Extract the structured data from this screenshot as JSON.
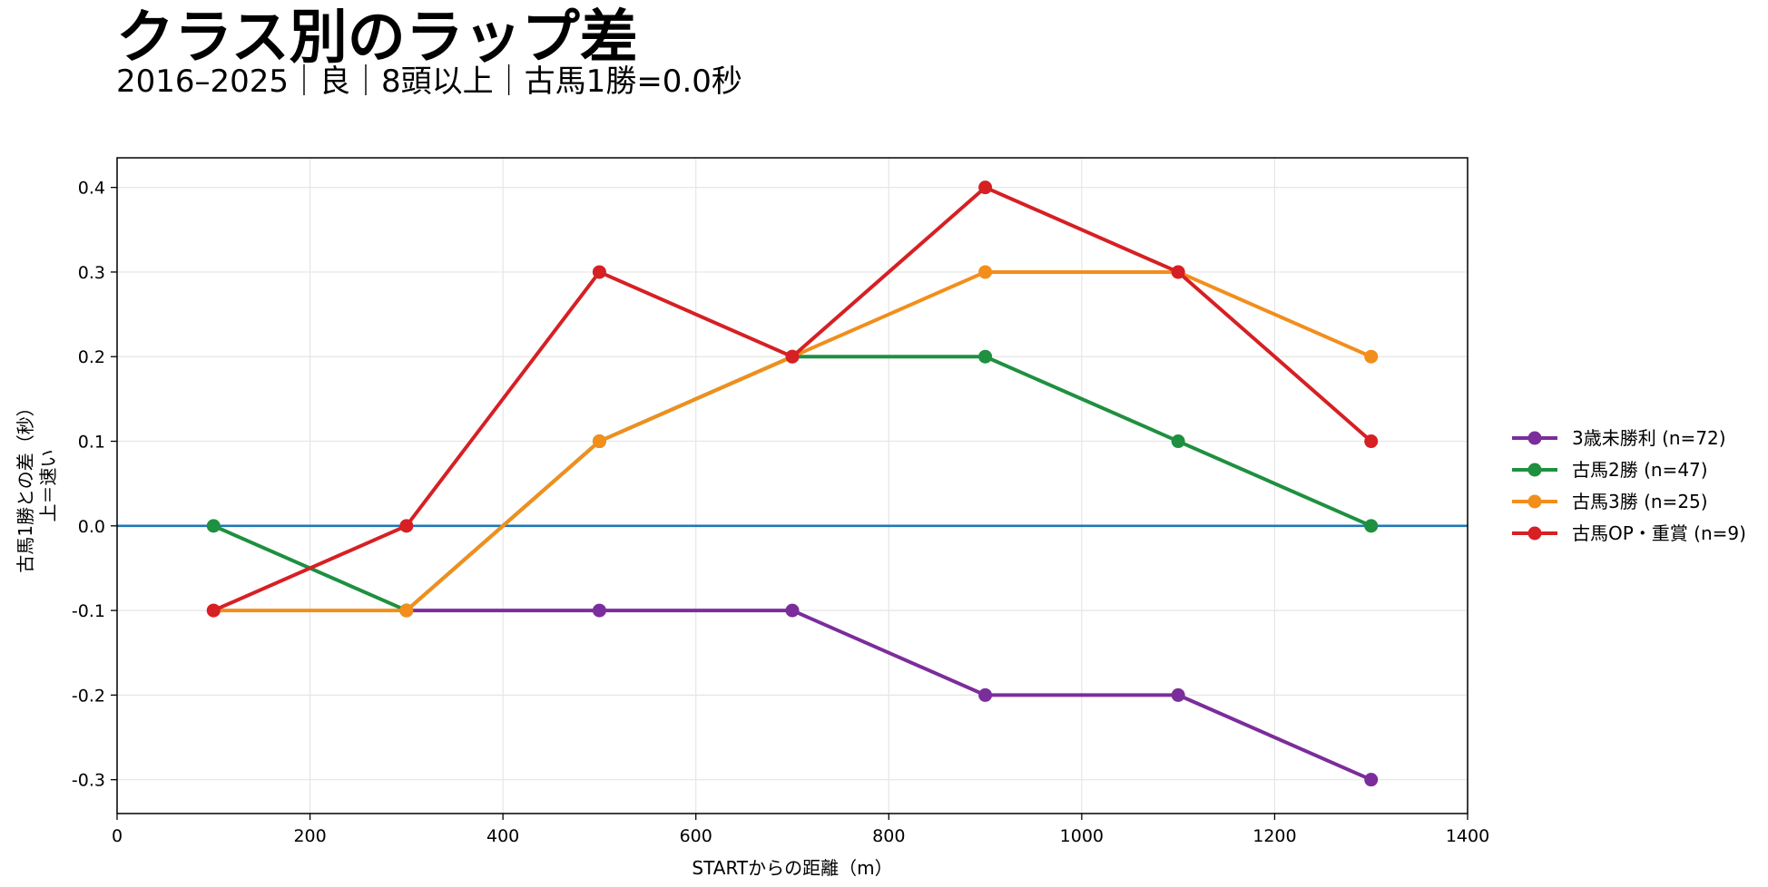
{
  "chart_data": {
    "type": "line",
    "title": "クラス別のラップ差",
    "subtitle": "2016–2025｜良｜8頭以上｜古馬1勝=0.0秒",
    "xlabel": "STARTからの距離（m）",
    "ylabel_lines": [
      "古馬1勝との差（秒）",
      "上＝速い"
    ],
    "xlim": [
      0,
      1400
    ],
    "ylim": [
      -0.34,
      0.435
    ],
    "xticks": [
      0,
      200,
      400,
      600,
      800,
      1000,
      1200,
      1400
    ],
    "xtick_labels": [
      "0",
      "200",
      "400",
      "600",
      "800",
      "1000",
      "1200",
      "1400"
    ],
    "yticks": [
      -0.3,
      -0.2,
      -0.1,
      0.0,
      0.1,
      0.2,
      0.3,
      0.4
    ],
    "ytick_labels": [
      "-0.3",
      "-0.2",
      "-0.1",
      "0.0",
      "0.1",
      "0.2",
      "0.3",
      "0.4"
    ],
    "grid": true,
    "reference_line": {
      "y": 0.0,
      "color": "#1f77b4"
    },
    "legend_position": "right",
    "x": [
      100,
      300,
      500,
      700,
      900,
      1100,
      1300
    ],
    "series": [
      {
        "name": "3歳未勝利 (n=72)",
        "color": "#7b2d9b",
        "values": [
          null,
          -0.1,
          -0.1,
          -0.1,
          -0.2,
          -0.2,
          -0.3
        ]
      },
      {
        "name": "古馬2勝 (n=47)",
        "color": "#1e9040",
        "values": [
          0.0,
          -0.1,
          0.1,
          0.2,
          0.2,
          0.1,
          0.0
        ]
      },
      {
        "name": "古馬3勝 (n=25)",
        "color": "#f28e1c",
        "values": [
          -0.1,
          -0.1,
          0.1,
          0.2,
          0.3,
          0.3,
          0.2
        ]
      },
      {
        "name": "古馬OP・重賞 (n=9)",
        "color": "#d62024",
        "values": [
          -0.1,
          0.0,
          0.3,
          0.2,
          0.4,
          0.3,
          0.1
        ]
      }
    ]
  }
}
